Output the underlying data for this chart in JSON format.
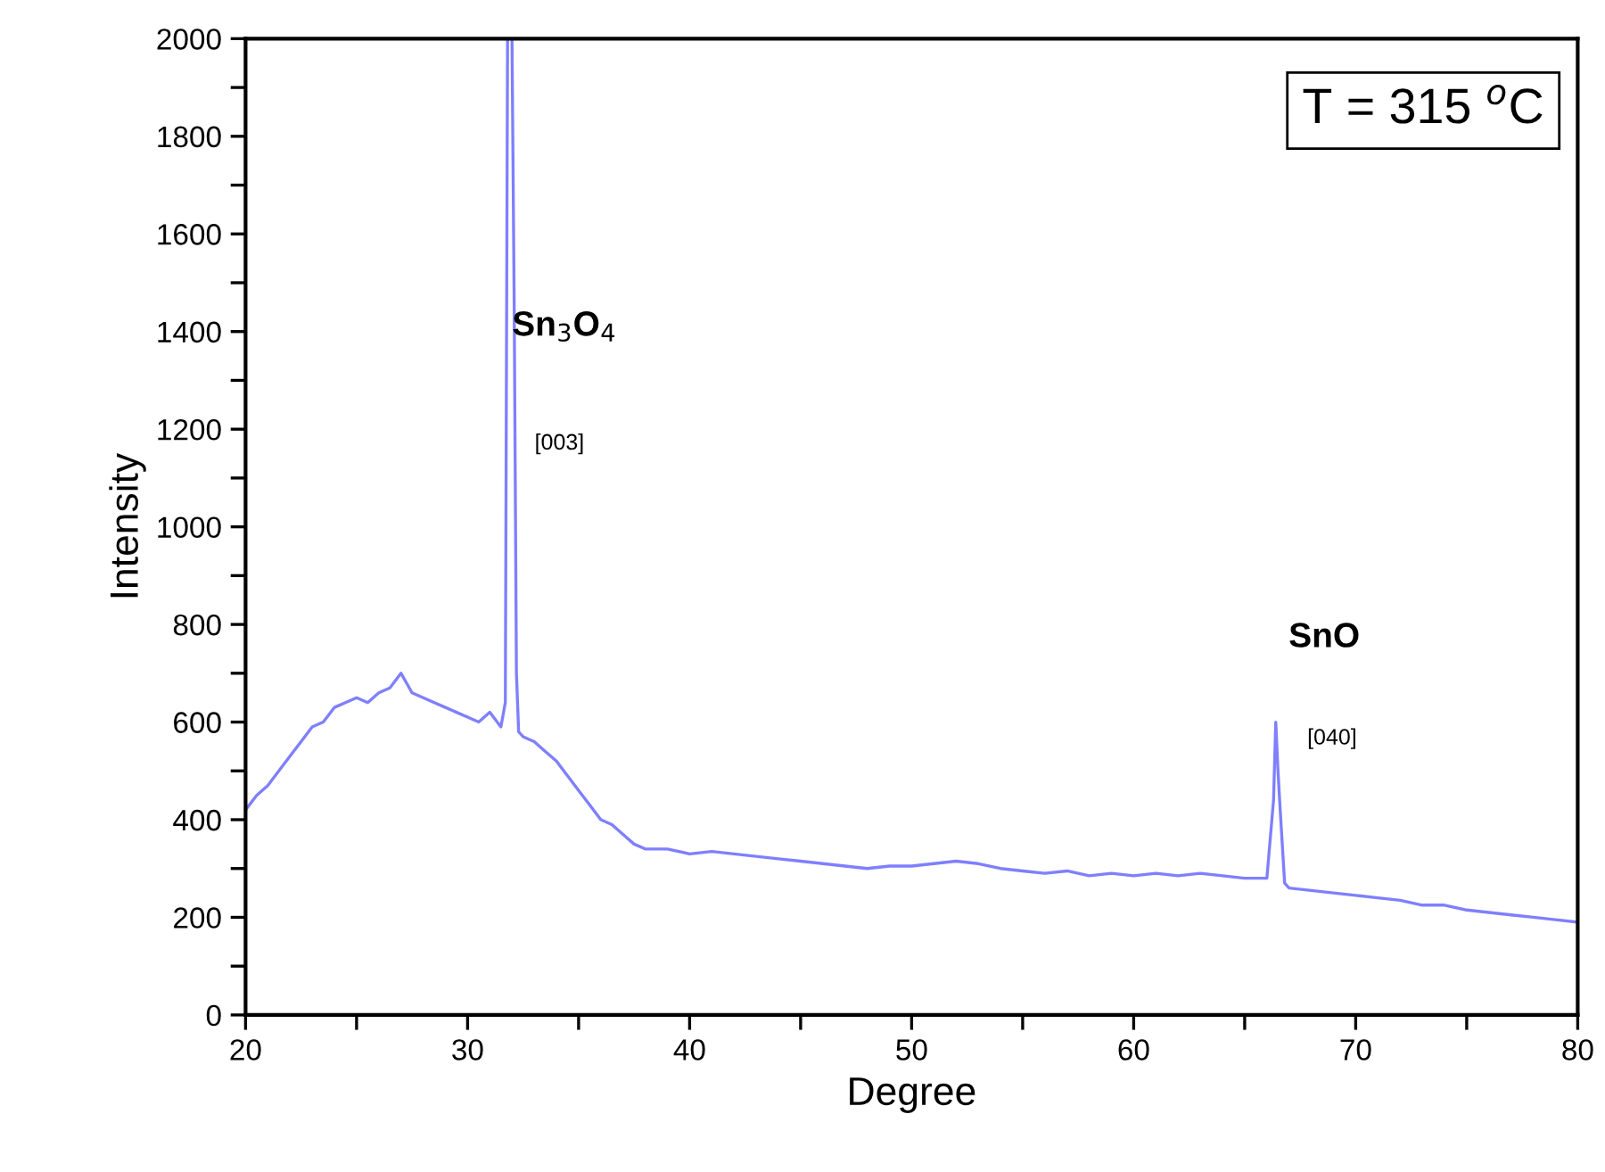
{
  "chart_data": {
    "type": "line",
    "xlabel": "Degree",
    "ylabel": "Intensity",
    "x": [
      20,
      20.5,
      21,
      21.5,
      22,
      22.5,
      23,
      23.5,
      24,
      24.5,
      25,
      25.5,
      26,
      26.5,
      27,
      27.5,
      28,
      28.5,
      29,
      29.5,
      30,
      30.5,
      31,
      31.5,
      31.7,
      31.8,
      32.0,
      32.1,
      32.2,
      32.3,
      32.5,
      33,
      33.5,
      34,
      34.5,
      35,
      35.5,
      36,
      36.5,
      37,
      37.5,
      38,
      39,
      40,
      41,
      42,
      43,
      44,
      45,
      46,
      47,
      48,
      49,
      50,
      51,
      52,
      53,
      54,
      55,
      56,
      57,
      58,
      59,
      60,
      61,
      62,
      63,
      64,
      65,
      66,
      66.3,
      66.4,
      66.5,
      66.6,
      66.8,
      67,
      68,
      69,
      70,
      71,
      72,
      73,
      74,
      75,
      76,
      77,
      78,
      79,
      80
    ],
    "series": [
      {
        "color": "#7f7fff",
        "values": [
          420,
          450,
          470,
          500,
          530,
          560,
          590,
          600,
          630,
          640,
          650,
          640,
          660,
          670,
          700,
          660,
          650,
          640,
          630,
          620,
          610,
          600,
          620,
          590,
          640,
          2000,
          2000,
          1450,
          700,
          580,
          570,
          560,
          540,
          520,
          490,
          460,
          430,
          400,
          390,
          370,
          350,
          340,
          340,
          330,
          335,
          330,
          325,
          320,
          315,
          310,
          305,
          300,
          305,
          305,
          310,
          315,
          310,
          300,
          295,
          290,
          295,
          285,
          290,
          285,
          290,
          285,
          290,
          285,
          280,
          280,
          440,
          600,
          500,
          420,
          270,
          260,
          255,
          250,
          245,
          240,
          235,
          225,
          225,
          215,
          210,
          205,
          200,
          195,
          190
        ]
      }
    ],
    "xlim": [
      20,
      80
    ],
    "ylim": [
      0,
      2000
    ],
    "xticks": [
      20,
      {
        "value": 25,
        "label": null
      },
      30,
      {
        "value": 35,
        "label": null
      },
      40,
      {
        "value": 45,
        "label": null
      },
      50,
      {
        "value": 55,
        "label": null
      },
      60,
      {
        "value": 65,
        "label": null
      },
      70,
      {
        "value": 75,
        "label": null
      },
      80
    ],
    "yticks": [
      0,
      {
        "value": 100,
        "label": null
      },
      200,
      {
        "value": 300,
        "label": null
      },
      400,
      {
        "value": 500,
        "label": null
      },
      600,
      {
        "value": 700,
        "label": null
      },
      800,
      {
        "value": 900,
        "label": null
      },
      1000,
      {
        "value": 1100,
        "label": null
      },
      1200,
      {
        "value": 1300,
        "label": null
      },
      1400,
      {
        "value": 1500,
        "label": null
      },
      1600,
      {
        "value": 1700,
        "label": null
      },
      1800,
      {
        "value": 1900,
        "label": null
      },
      2000
    ],
    "grid": false,
    "legend": false,
    "marker": "none",
    "line_style": "solid",
    "annotations": [
      "T = 315 $^{o}$C",
      "Sn$_{3}$O$_{4}$",
      "[003]",
      "SnO",
      "[040]"
    ]
  }
}
